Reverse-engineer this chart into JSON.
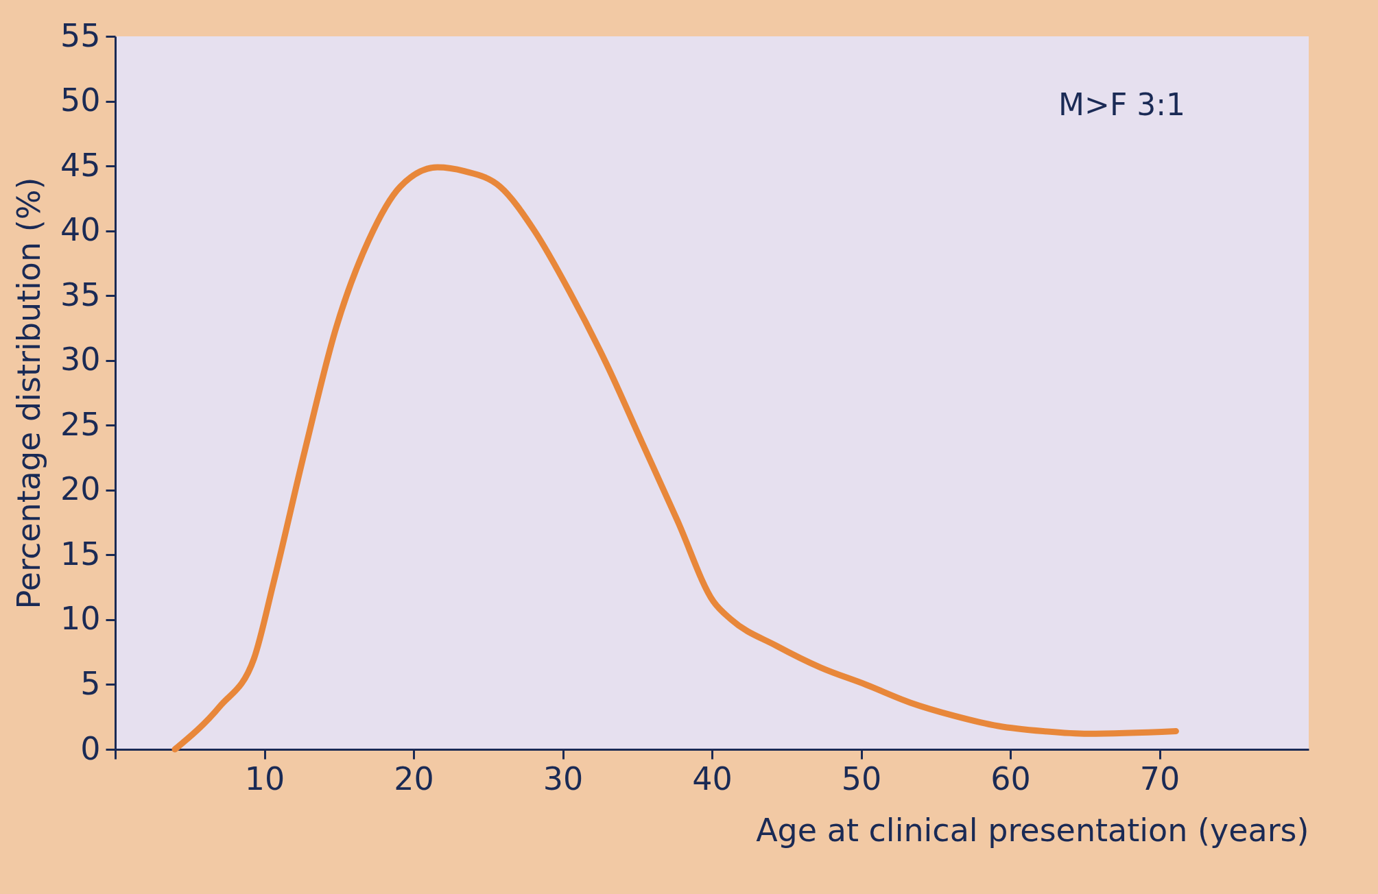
{
  "chart_data": {
    "type": "line",
    "xlabel": "Age at clinical presentation (years)",
    "ylabel": "Percentage distribution (%)",
    "annotations": [
      "M>F 3:1"
    ],
    "x": [
      4,
      7,
      9.3,
      10.6,
      12.7,
      14.8,
      17,
      19.1,
      21.6,
      23.4,
      25.8,
      28.1,
      30.5,
      32.9,
      35.3,
      37.7,
      40.1,
      41.3,
      44.3,
      47.3,
      50.3,
      53.3,
      56.2,
      59.2,
      62.2,
      65.2,
      71.1
    ],
    "series": [
      {
        "color": "#e8873a",
        "values": [
          0,
          3.3,
          7,
          12.8,
          23,
          32.5,
          39.3,
          43.4,
          44.9,
          44.6,
          43.4,
          40,
          35.2,
          29.8,
          23.7,
          17.6,
          11.4,
          10,
          8,
          6.3,
          5,
          3.6,
          2.6,
          1.8,
          1.4,
          1.2,
          1.4
        ]
      }
    ],
    "xlim": [
      0,
      80
    ],
    "xticks": [
      {
        "value": 0,
        "label": null
      },
      10,
      20,
      30,
      40,
      50,
      60,
      70
    ],
    "ylim": [
      0,
      55
    ],
    "yticks": [
      0,
      5,
      10,
      15,
      20,
      25,
      30,
      35,
      40,
      45,
      50,
      55
    ],
    "grid": false,
    "marker": "none",
    "line_style": "solid"
  }
}
